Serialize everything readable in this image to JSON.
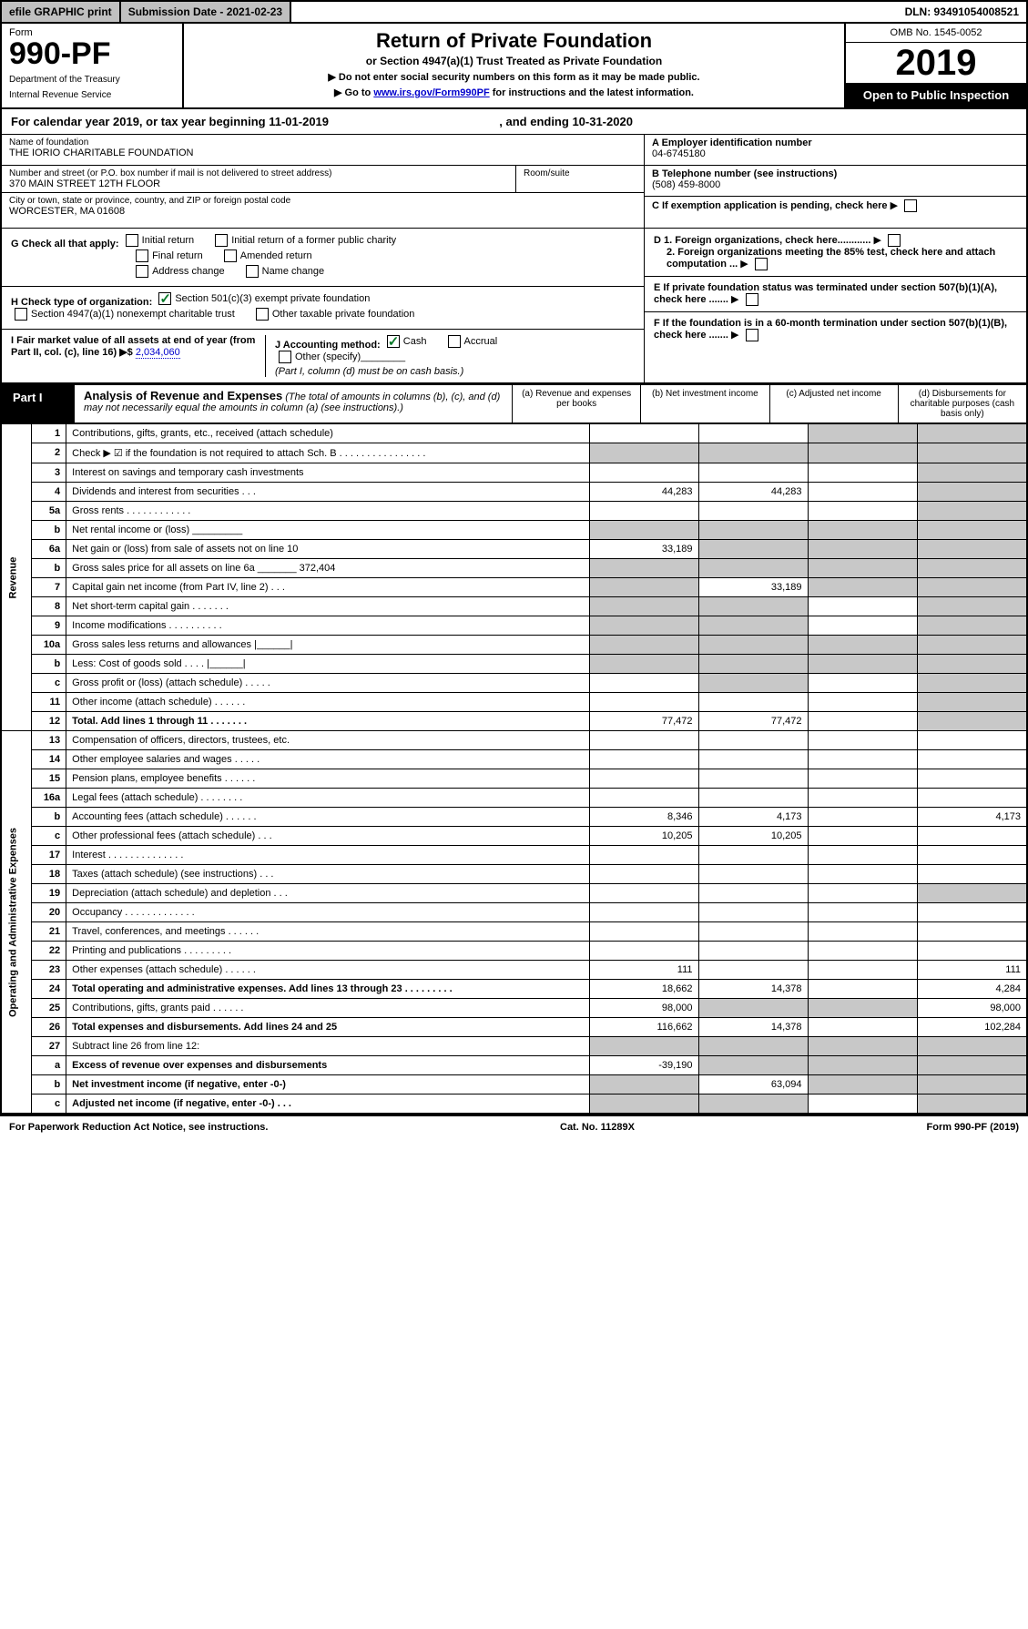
{
  "topbar": {
    "efile": "efile GRAPHIC print",
    "submission": "Submission Date - 2021-02-23",
    "dln": "DLN: 93491054008521"
  },
  "header": {
    "form_label": "Form",
    "form_number": "990-PF",
    "dept1": "Department of the Treasury",
    "dept2": "Internal Revenue Service",
    "title": "Return of Private Foundation",
    "subtitle": "or Section 4947(a)(1) Trust Treated as Private Foundation",
    "note1": "▶ Do not enter social security numbers on this form as it may be made public.",
    "note2_pre": "▶ Go to ",
    "note2_link": "www.irs.gov/Form990PF",
    "note2_post": " for instructions and the latest information.",
    "omb": "OMB No. 1545-0052",
    "year": "2019",
    "open": "Open to Public Inspection"
  },
  "calendar": {
    "text_pre": "For calendar year 2019, or tax year beginning ",
    "begin": "11-01-2019",
    "text_mid": " , and ending ",
    "end": "10-31-2020"
  },
  "identity": {
    "name_label": "Name of foundation",
    "name": "THE IORIO CHARITABLE FOUNDATION",
    "addr_label": "Number and street (or P.O. box number if mail is not delivered to street address)",
    "addr": "370 MAIN STREET 12TH FLOOR",
    "room_label": "Room/suite",
    "city_label": "City or town, state or province, country, and ZIP or foreign postal code",
    "city": "WORCESTER, MA  01608",
    "ein_label": "A Employer identification number",
    "ein": "04-6745180",
    "tel_label": "B Telephone number (see instructions)",
    "tel": "(508) 459-8000",
    "c_label": "C If exemption application is pending, check here",
    "d1": "D 1. Foreign organizations, check here............",
    "d2": "2. Foreign organizations meeting the 85% test, check here and attach computation ...",
    "e": "E If private foundation status was terminated under section 507(b)(1)(A), check here .......",
    "f": "F If the foundation is in a 60-month termination under section 507(b)(1)(B), check here ......."
  },
  "checks": {
    "g_label": "G Check all that apply:",
    "g_opts": [
      "Initial return",
      "Initial return of a former public charity",
      "Final return",
      "Amended return",
      "Address change",
      "Name change"
    ],
    "h_label": "H Check type of organization:",
    "h_opt1": "Section 501(c)(3) exempt private foundation",
    "h_opt2": "Section 4947(a)(1) nonexempt charitable trust",
    "h_opt3": "Other taxable private foundation",
    "i_label": "I Fair market value of all assets at end of year (from Part II, col. (c), line 16) ▶$ ",
    "i_val": "2,034,060",
    "j_label": "J Accounting method:",
    "j_cash": "Cash",
    "j_accrual": "Accrual",
    "j_other": "Other (specify)",
    "j_note": "(Part I, column (d) must be on cash basis.)"
  },
  "part1": {
    "label": "Part I",
    "title": "Analysis of Revenue and Expenses",
    "title_note": "(The total of amounts in columns (b), (c), and (d) may not necessarily equal the amounts in column (a) (see instructions).)",
    "col_a": "(a)  Revenue and expenses per books",
    "col_b": "(b)  Net investment income",
    "col_c": "(c)  Adjusted net income",
    "col_d": "(d)  Disbursements for charitable purposes (cash basis only)"
  },
  "side": {
    "revenue": "Revenue",
    "expenses": "Operating and Administrative Expenses"
  },
  "rows": [
    {
      "n": "1",
      "d": "Contributions, gifts, grants, etc., received (attach schedule)",
      "a": "",
      "b": "",
      "c_sh": true,
      "d_sh": true
    },
    {
      "n": "2",
      "d": "Check ▶ ☑ if the foundation is not required to attach Sch. B   .  .  .  .  .  .  .  .  .  .  .  .  .  .  .  .",
      "all_sh": true
    },
    {
      "n": "3",
      "d": "Interest on savings and temporary cash investments",
      "a": "",
      "b": "",
      "c": "",
      "d_sh": true
    },
    {
      "n": "4",
      "d": "Dividends and interest from securities   .  .  .",
      "a": "44,283",
      "b": "44,283",
      "c": "",
      "d_sh": true
    },
    {
      "n": "5a",
      "d": "Gross rents   .  .  .  .  .  .  .  .  .  .  .  .",
      "a": "",
      "b": "",
      "c": "",
      "d_sh": true
    },
    {
      "n": "b",
      "d": "Net rental income or (loss)  _________",
      "all_sh": true
    },
    {
      "n": "6a",
      "d": "Net gain or (loss) from sale of assets not on line 10",
      "a": "33,189",
      "b_sh": true,
      "c_sh": true,
      "d_sh": true
    },
    {
      "n": "b",
      "d": "Gross sales price for all assets on line 6a _______ 372,404",
      "all_sh": true
    },
    {
      "n": "7",
      "d": "Capital gain net income (from Part IV, line 2)   .  .  .",
      "a_sh": true,
      "b": "33,189",
      "c_sh": true,
      "d_sh": true
    },
    {
      "n": "8",
      "d": "Net short-term capital gain   .  .  .  .  .  .  .",
      "a_sh": true,
      "b_sh": true,
      "c": "",
      "d_sh": true
    },
    {
      "n": "9",
      "d": "Income modifications  .  .  .  .  .  .  .  .  .  .",
      "a_sh": true,
      "b_sh": true,
      "c": "",
      "d_sh": true
    },
    {
      "n": "10a",
      "d": "Gross sales less returns and allowances  |______|",
      "all_sh": true
    },
    {
      "n": "b",
      "d": "Less: Cost of goods sold   .  .  .  .  |______|",
      "all_sh": true
    },
    {
      "n": "c",
      "d": "Gross profit or (loss) (attach schedule)   .  .  .  .  .",
      "a": "",
      "b_sh": true,
      "c": "",
      "d_sh": true
    },
    {
      "n": "11",
      "d": "Other income (attach schedule)   .  .  .  .  .  .",
      "a": "",
      "b": "",
      "c": "",
      "d_sh": true
    },
    {
      "n": "12",
      "d": "Total. Add lines 1 through 11   .  .  .  .  .  .  .",
      "bold": true,
      "a": "77,472",
      "b": "77,472",
      "c": "",
      "d_sh": true
    }
  ],
  "exp_rows": [
    {
      "n": "13",
      "d": "Compensation of officers, directors, trustees, etc.",
      "a": "",
      "b": "",
      "c": "",
      "dd": ""
    },
    {
      "n": "14",
      "d": "Other employee salaries and wages   .  .  .  .  .",
      "a": "",
      "b": "",
      "c": "",
      "dd": ""
    },
    {
      "n": "15",
      "d": "Pension plans, employee benefits   .  .  .  .  .  .",
      "a": "",
      "b": "",
      "c": "",
      "dd": ""
    },
    {
      "n": "16a",
      "d": "Legal fees (attach schedule)  .  .  .  .  .  .  .  .",
      "a": "",
      "b": "",
      "c": "",
      "dd": ""
    },
    {
      "n": "b",
      "d": "Accounting fees (attach schedule)   .  .  .  .  .  .",
      "a": "8,346",
      "b": "4,173",
      "c": "",
      "dd": "4,173"
    },
    {
      "n": "c",
      "d": "Other professional fees (attach schedule)   .  .  .",
      "a": "10,205",
      "b": "10,205",
      "c": "",
      "dd": ""
    },
    {
      "n": "17",
      "d": "Interest   .  .  .  .  .  .  .  .  .  .  .  .  .  .",
      "a": "",
      "b": "",
      "c": "",
      "dd": ""
    },
    {
      "n": "18",
      "d": "Taxes (attach schedule) (see instructions)   .  .  .",
      "a": "",
      "b": "",
      "c": "",
      "dd": ""
    },
    {
      "n": "19",
      "d": "Depreciation (attach schedule) and depletion   .  .  .",
      "a": "",
      "b": "",
      "c": "",
      "d_sh": true
    },
    {
      "n": "20",
      "d": "Occupancy  .  .  .  .  .  .  .  .  .  .  .  .  .",
      "a": "",
      "b": "",
      "c": "",
      "dd": ""
    },
    {
      "n": "21",
      "d": "Travel, conferences, and meetings   .  .  .  .  .  .",
      "a": "",
      "b": "",
      "c": "",
      "dd": ""
    },
    {
      "n": "22",
      "d": "Printing and publications  .  .  .  .  .  .  .  .  .",
      "a": "",
      "b": "",
      "c": "",
      "dd": ""
    },
    {
      "n": "23",
      "d": "Other expenses (attach schedule)   .  .  .  .  .  .",
      "a": "111",
      "b": "",
      "c": "",
      "dd": "111"
    },
    {
      "n": "24",
      "d": "Total operating and administrative expenses. Add lines 13 through 23   .  .  .  .  .  .  .  .  .",
      "bold": true,
      "a": "18,662",
      "b": "14,378",
      "c": "",
      "dd": "4,284"
    },
    {
      "n": "25",
      "d": "Contributions, gifts, grants paid   .  .  .  .  .  .",
      "a": "98,000",
      "b_sh": true,
      "c_sh": true,
      "dd": "98,000"
    },
    {
      "n": "26",
      "d": "Total expenses and disbursements. Add lines 24 and 25",
      "bold": true,
      "a": "116,662",
      "b": "14,378",
      "c": "",
      "dd": "102,284"
    },
    {
      "n": "27",
      "d": "Subtract line 26 from line 12:",
      "all_sh": true
    },
    {
      "n": "a",
      "d": "Excess of revenue over expenses and disbursements",
      "bold": true,
      "a": "-39,190",
      "b_sh": true,
      "c_sh": true,
      "d_sh": true
    },
    {
      "n": "b",
      "d": "Net investment income (if negative, enter -0-)",
      "bold": true,
      "a_sh": true,
      "b": "63,094",
      "c_sh": true,
      "d_sh": true
    },
    {
      "n": "c",
      "d": "Adjusted net income (if negative, enter -0-)   .  .  .",
      "bold": true,
      "a_sh": true,
      "b_sh": true,
      "c": "",
      "d_sh": true
    }
  ],
  "footer": {
    "left": "For Paperwork Reduction Act Notice, see instructions.",
    "mid": "Cat. No. 11289X",
    "right": "Form 990-PF (2019)"
  }
}
